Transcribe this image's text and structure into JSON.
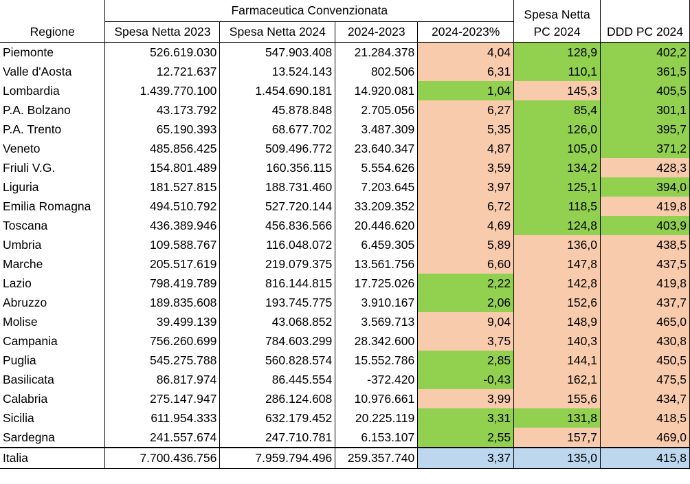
{
  "colors": {
    "green": "#92d050",
    "peach": "#f8cbad",
    "blue": "#bdd7ee"
  },
  "header": {
    "group_title": "Farmaceutica Convenzionata",
    "col_region": "Regione",
    "col_spesa_2023": "Spesa Netta 2023",
    "col_spesa_2024": "Spesa Netta 2024",
    "col_diff": "2024-2023",
    "col_diff_pct": "2024-2023%",
    "col_pc_top": "Spesa Netta",
    "col_pc_bottom": "PC 2024",
    "col_ddd": "DDD PC 2024"
  },
  "rows": [
    {
      "regione": "Piemonte",
      "s2023": "526.619.030",
      "s2024": "547.903.408",
      "diff": "21.284.378",
      "pct": "4,04",
      "pct_color": "peach",
      "pc": "128,9",
      "pc_color": "green",
      "ddd": "402,2",
      "ddd_color": "green"
    },
    {
      "regione": "Valle d'Aosta",
      "s2023": "12.721.637",
      "s2024": "13.524.143",
      "diff": "802.506",
      "pct": "6,31",
      "pct_color": "peach",
      "pc": "110,1",
      "pc_color": "green",
      "ddd": "361,5",
      "ddd_color": "green"
    },
    {
      "regione": "Lombardia",
      "s2023": "1.439.770.100",
      "s2024": "1.454.690.181",
      "diff": "14.920.081",
      "pct": "1,04",
      "pct_color": "green",
      "pc": "145,3",
      "pc_color": "peach",
      "ddd": "405,5",
      "ddd_color": "green"
    },
    {
      "regione": "P.A. Bolzano",
      "s2023": "43.173.792",
      "s2024": "45.878.848",
      "diff": "2.705.056",
      "pct": "6,27",
      "pct_color": "peach",
      "pc": "85,4",
      "pc_color": "green",
      "ddd": "301,1",
      "ddd_color": "green"
    },
    {
      "regione": "P.A. Trento",
      "s2023": "65.190.393",
      "s2024": "68.677.702",
      "diff": "3.487.309",
      "pct": "5,35",
      "pct_color": "peach",
      "pc": "126,0",
      "pc_color": "green",
      "ddd": "395,7",
      "ddd_color": "green"
    },
    {
      "regione": "Veneto",
      "s2023": "485.856.425",
      "s2024": "509.496.772",
      "diff": "23.640.347",
      "pct": "4,87",
      "pct_color": "peach",
      "pc": "105,0",
      "pc_color": "green",
      "ddd": "371,2",
      "ddd_color": "green"
    },
    {
      "regione": "Friuli V.G.",
      "s2023": "154.801.489",
      "s2024": "160.356.115",
      "diff": "5.554.626",
      "pct": "3,59",
      "pct_color": "peach",
      "pc": "134,2",
      "pc_color": "green",
      "ddd": "428,3",
      "ddd_color": "peach"
    },
    {
      "regione": "Liguria",
      "s2023": "181.527.815",
      "s2024": "188.731.460",
      "diff": "7.203.645",
      "pct": "3,97",
      "pct_color": "peach",
      "pc": "125,1",
      "pc_color": "green",
      "ddd": "394,0",
      "ddd_color": "green"
    },
    {
      "regione": "Emilia Romagna",
      "s2023": "494.510.792",
      "s2024": "527.720.144",
      "diff": "33.209.352",
      "pct": "6,72",
      "pct_color": "peach",
      "pc": "118,5",
      "pc_color": "green",
      "ddd": "419,8",
      "ddd_color": "peach"
    },
    {
      "regione": "Toscana",
      "s2023": "436.389.946",
      "s2024": "456.836.566",
      "diff": "20.446.620",
      "pct": "4,69",
      "pct_color": "peach",
      "pc": "124,8",
      "pc_color": "green",
      "ddd": "403,9",
      "ddd_color": "green"
    },
    {
      "regione": "Umbria",
      "s2023": "109.588.767",
      "s2024": "116.048.072",
      "diff": "6.459.305",
      "pct": "5,89",
      "pct_color": "peach",
      "pc": "136,0",
      "pc_color": "peach",
      "ddd": "438,5",
      "ddd_color": "peach"
    },
    {
      "regione": "Marche",
      "s2023": "205.517.619",
      "s2024": "219.079.375",
      "diff": "13.561.756",
      "pct": "6,60",
      "pct_color": "peach",
      "pc": "147,8",
      "pc_color": "peach",
      "ddd": "437,5",
      "ddd_color": "peach"
    },
    {
      "regione": "Lazio",
      "s2023": "798.419.789",
      "s2024": "816.144.815",
      "diff": "17.725.026",
      "pct": "2,22",
      "pct_color": "green",
      "pc": "142,8",
      "pc_color": "peach",
      "ddd": "419,8",
      "ddd_color": "peach"
    },
    {
      "regione": "Abruzzo",
      "s2023": "189.835.608",
      "s2024": "193.745.775",
      "diff": "3.910.167",
      "pct": "2,06",
      "pct_color": "green",
      "pc": "152,6",
      "pc_color": "peach",
      "ddd": "437,7",
      "ddd_color": "peach"
    },
    {
      "regione": "Molise",
      "s2023": "39.499.139",
      "s2024": "43.068.852",
      "diff": "3.569.713",
      "pct": "9,04",
      "pct_color": "peach",
      "pc": "148,9",
      "pc_color": "peach",
      "ddd": "465,0",
      "ddd_color": "peach"
    },
    {
      "regione": "Campania",
      "s2023": "756.260.699",
      "s2024": "784.603.299",
      "diff": "28.342.600",
      "pct": "3,75",
      "pct_color": "peach",
      "pc": "140,3",
      "pc_color": "peach",
      "ddd": "430,8",
      "ddd_color": "peach"
    },
    {
      "regione": "Puglia",
      "s2023": "545.275.788",
      "s2024": "560.828.574",
      "diff": "15.552.786",
      "pct": "2,85",
      "pct_color": "green",
      "pc": "144,1",
      "pc_color": "peach",
      "ddd": "450,5",
      "ddd_color": "peach"
    },
    {
      "regione": "Basilicata",
      "s2023": "86.817.974",
      "s2024": "86.445.554",
      "diff": "-372.420",
      "pct": "-0,43",
      "pct_color": "green",
      "pc": "162,1",
      "pc_color": "peach",
      "ddd": "475,5",
      "ddd_color": "peach"
    },
    {
      "regione": "Calabria",
      "s2023": "275.147.947",
      "s2024": "286.124.608",
      "diff": "10.976.661",
      "pct": "3,99",
      "pct_color": "peach",
      "pc": "155,6",
      "pc_color": "peach",
      "ddd": "434,7",
      "ddd_color": "peach"
    },
    {
      "regione": "Sicilia",
      "s2023": "611.954.333",
      "s2024": "632.179.452",
      "diff": "20.225.119",
      "pct": "3,31",
      "pct_color": "green",
      "pc": "131,8",
      "pc_color": "green",
      "ddd": "418,5",
      "ddd_color": "peach"
    },
    {
      "regione": "Sardegna",
      "s2023": "241.557.674",
      "s2024": "247.710.781",
      "diff": "6.153.107",
      "pct": "2,55",
      "pct_color": "green",
      "pc": "157,7",
      "pc_color": "peach",
      "ddd": "469,0",
      "ddd_color": "peach"
    }
  ],
  "total": {
    "regione": "Italia",
    "s2023": "7.700.436.756",
    "s2024": "7.959.794.496",
    "diff": "259.357.740",
    "pct": "3,37",
    "pc": "135,0",
    "ddd": "415,8"
  }
}
